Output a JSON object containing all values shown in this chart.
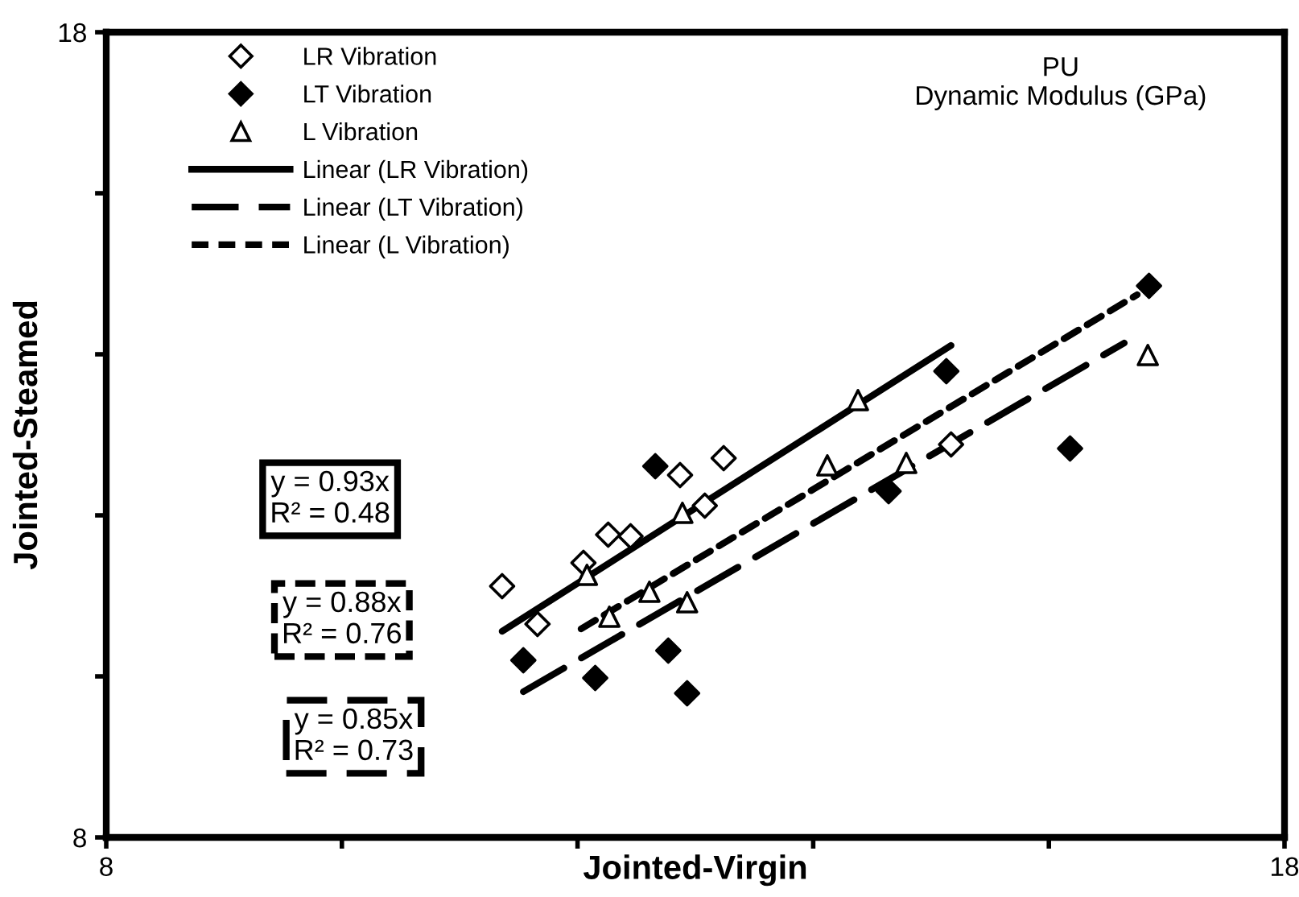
{
  "chart_data": {
    "type": "scatter",
    "title": "PU\nDynamic Modulus (GPa)",
    "xlabel": "Jointed-Virgin",
    "ylabel": "Jointed-Steamed",
    "xlim": [
      8,
      18
    ],
    "ylim": [
      8,
      18
    ],
    "xticks": [
      8,
      {
        "value": 10,
        "label": null
      },
      {
        "value": 12,
        "label": null
      },
      {
        "value": 14,
        "label": null
      },
      {
        "value": 16,
        "label": null
      },
      18
    ],
    "yticks": [
      8,
      {
        "value": 10,
        "label": null
      },
      {
        "value": 12,
        "label": null
      },
      {
        "value": 14,
        "label": null
      },
      {
        "value": 16,
        "label": null
      },
      18
    ],
    "grid": false,
    "legend": "top left",
    "series": [
      {
        "name": "LR Vibration",
        "marker": "diamond",
        "color": "#ffffff",
        "x": [
          11.36,
          11.66,
          12.05,
          12.26,
          12.45,
          12.87,
          13.08,
          13.24,
          15.17
        ],
        "values": [
          11.12,
          10.65,
          11.41,
          11.76,
          11.74,
          12.5,
          12.12,
          12.71,
          12.88
        ]
      },
      {
        "name": "LT Vibration",
        "marker": "diamond",
        "color": "#000000",
        "x": [
          11.54,
          12.15,
          12.66,
          12.77,
          12.93,
          14.64,
          15.13,
          16.18,
          16.85
        ],
        "values": [
          10.2,
          9.98,
          12.61,
          10.32,
          9.79,
          12.3,
          13.79,
          12.83,
          14.85
        ]
      },
      {
        "name": "L Vibration",
        "marker": "triangle",
        "color": "#ffffff",
        "x": [
          12.08,
          12.27,
          12.61,
          12.89,
          12.93,
          14.12,
          14.38,
          14.79,
          16.84
        ],
        "values": [
          11.26,
          10.74,
          11.05,
          12.03,
          10.92,
          12.62,
          13.43,
          12.65,
          13.99
        ]
      },
      {
        "name": "Linear (LR Vibration)",
        "type": "line",
        "line_style": "solid",
        "color": "#000000",
        "x": [
          11.36,
          15.17
        ],
        "values": [
          10.56,
          14.11
        ]
      },
      {
        "name": "Linear (LT Vibration)",
        "type": "line",
        "line_style": "dashed",
        "color": "#000000",
        "x": [
          11.54,
          16.64
        ],
        "values": [
          9.81,
          14.14
        ]
      },
      {
        "name": "Linear (L Vibration)",
        "type": "line",
        "line_style": "dotted",
        "color": "#000000",
        "x": [
          12.03,
          16.75
        ],
        "values": [
          10.59,
          14.74
        ]
      }
    ],
    "annotations": [
      "y = 0.93x\nR² = 0.48",
      "y = 0.88x\nR² = 0.76",
      "y = 0.85x\nR² = 0.73"
    ]
  }
}
